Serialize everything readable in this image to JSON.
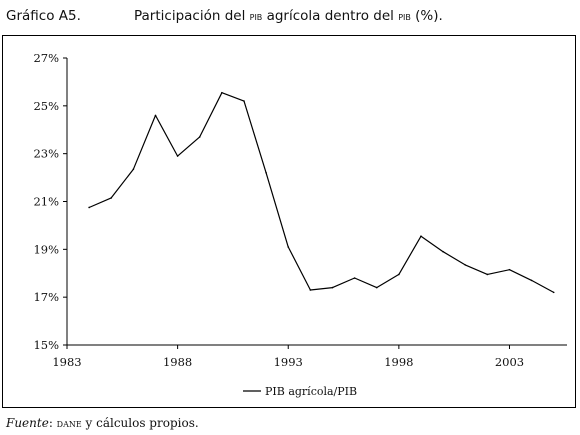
{
  "header": {
    "number": "Gráfico A5.",
    "title_pre": "Participación del ",
    "title_abbr1": "PIB",
    "title_mid": " agrícola dentro del ",
    "title_abbr2": "PIB",
    "title_post": " (%)."
  },
  "footer": {
    "label": "Fuente",
    "sep": ": ",
    "source": "DANE",
    "rest": " y cálculos propios."
  },
  "chart_data": {
    "type": "line",
    "xlabel": "",
    "ylabel": "",
    "xlim": [
      1983,
      2005.6
    ],
    "ylim": [
      15,
      27
    ],
    "x_ticks": [
      1983,
      1988,
      1993,
      1998,
      2003
    ],
    "x_tick_labels": [
      "1983",
      "1988",
      "1993",
      "1998",
      "2003"
    ],
    "y_ticks": [
      15,
      17,
      19,
      21,
      23,
      25,
      27
    ],
    "y_tick_labels": [
      "15%",
      "17%",
      "19%",
      "21%",
      "23%",
      "25%",
      "27%"
    ],
    "grid": false,
    "legend_position": "bottom-center",
    "series": [
      {
        "name": "PIB agrícola/PIB",
        "color": "#000000",
        "x": [
          1984,
          1985,
          1986,
          1987,
          1988,
          1989,
          1990,
          1991,
          1992,
          1993,
          1994,
          1995,
          1996,
          1997,
          1998,
          1999,
          2000,
          2001,
          2002,
          2003,
          2004,
          2005
        ],
        "y": [
          20.75,
          21.15,
          22.35,
          24.6,
          22.9,
          23.7,
          25.55,
          25.2,
          22.2,
          19.1,
          17.3,
          17.4,
          17.8,
          17.4,
          17.95,
          19.55,
          18.9,
          18.35,
          17.95,
          18.15,
          17.7,
          17.2
        ]
      }
    ]
  }
}
